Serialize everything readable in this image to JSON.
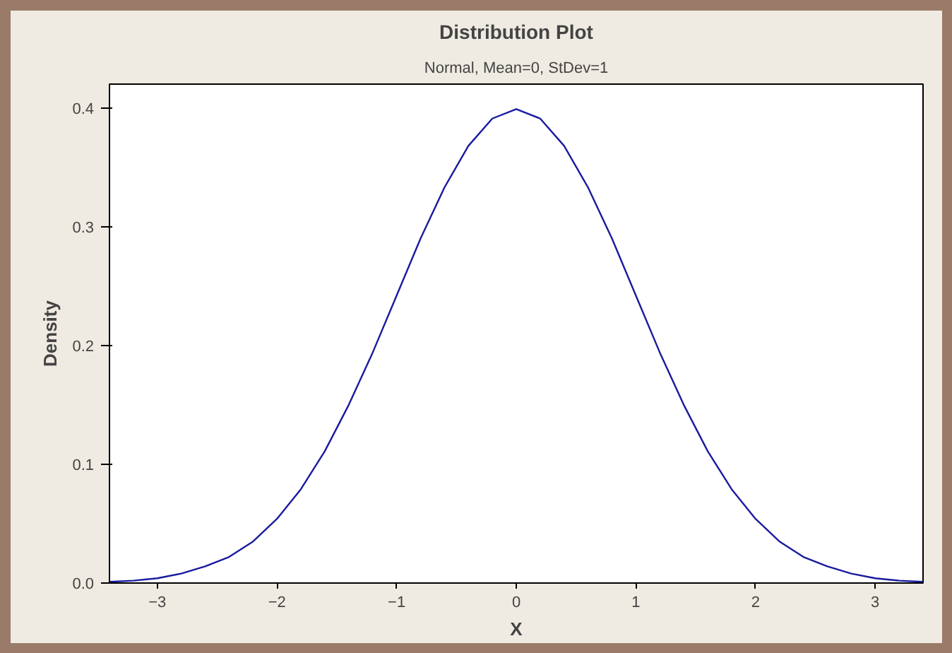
{
  "chart_data": {
    "type": "line",
    "title": "Distribution Plot",
    "subtitle": "Normal, Mean=0, StDev=1",
    "xlabel": "X",
    "ylabel": "Density",
    "x": [
      -3.4,
      -3.2,
      -3.0,
      -2.8,
      -2.6,
      -2.4,
      -2.2,
      -2.0,
      -1.8,
      -1.6,
      -1.4,
      -1.2,
      -1.0,
      -0.8,
      -0.6,
      -0.4,
      -0.2,
      0,
      0.2,
      0.4,
      0.6,
      0.8,
      1.0,
      1.2,
      1.4,
      1.6,
      1.8,
      2.0,
      2.2,
      2.4,
      2.6,
      2.8,
      3.0,
      3.2,
      3.4
    ],
    "series": [
      {
        "color": "#1a1aa0",
        "values": [
          0.001,
          0.002,
          0.004,
          0.008,
          0.014,
          0.022,
          0.035,
          0.054,
          0.079,
          0.111,
          0.15,
          0.194,
          0.242,
          0.29,
          0.333,
          0.368,
          0.391,
          0.399,
          0.391,
          0.368,
          0.333,
          0.29,
          0.242,
          0.194,
          0.15,
          0.111,
          0.079,
          0.054,
          0.035,
          0.022,
          0.014,
          0.008,
          0.004,
          0.002,
          0.001
        ]
      }
    ],
    "xlim": [
      -3.4,
      3.4
    ],
    "ylim": [
      0,
      0.42
    ],
    "xticks": [
      -3,
      -2,
      -1,
      0,
      1,
      2,
      3
    ],
    "yticks": [
      {
        "value": 0,
        "label": "0.0"
      },
      0.1,
      0.2,
      0.3,
      0.4
    ],
    "grid": false,
    "line_style": "solid",
    "marker": "none"
  }
}
